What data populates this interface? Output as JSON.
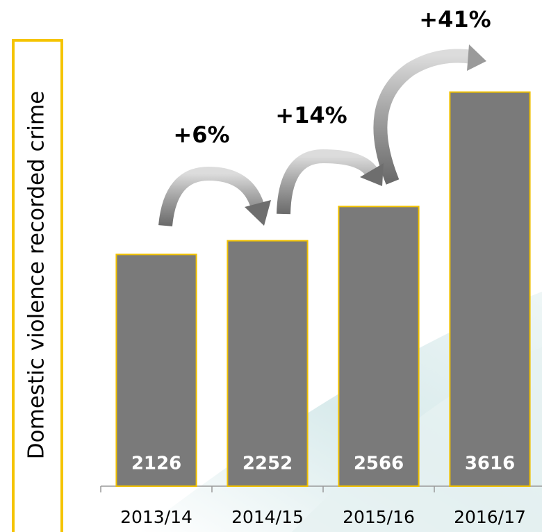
{
  "chart_data": {
    "type": "bar",
    "y_axis_label": "Domestic violence recorded crime",
    "categories": [
      "2013/14",
      "2014/15",
      "2015/16",
      "2016/17"
    ],
    "values": [
      2126,
      2252,
      2566,
      3616
    ],
    "color": "#7a7a7a",
    "edge_color": "#f0c000",
    "ylim": [
      0,
      3900
    ],
    "annotations": [
      "+6%",
      "+14%",
      "+41%"
    ]
  }
}
